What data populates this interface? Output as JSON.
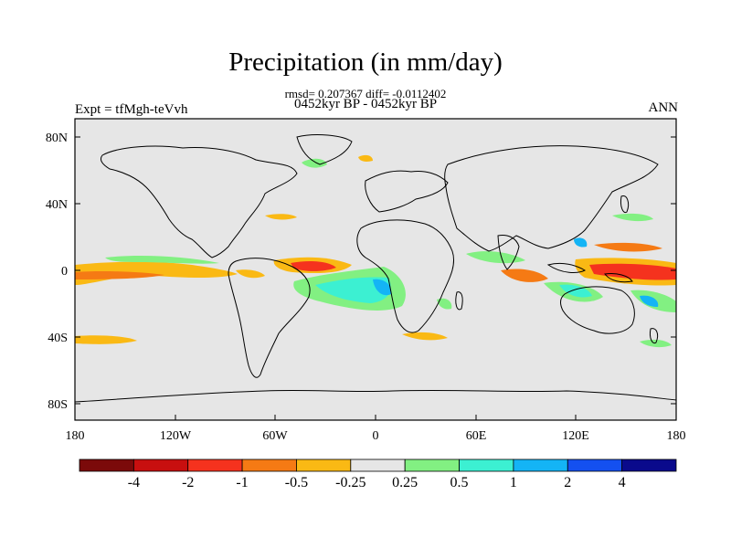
{
  "title": "Precipitation (in mm/day)",
  "stats_line": "rmsd= 0.207367 diff= -0.0112402",
  "period_line": "0452kyr BP - 0452kyr BP",
  "experiment_label": "Expt = tfMgh-teVvh",
  "season_label": "ANN",
  "map": {
    "lat_ticks": [
      "80N",
      "40N",
      "0",
      "40S",
      "80S"
    ],
    "lon_ticks": [
      "180",
      "120W",
      "60W",
      "0",
      "60E",
      "120E",
      "180"
    ],
    "background_color": "#e6e6e6"
  },
  "colorbar": {
    "colors": [
      "#7b0a0a",
      "#c80f0f",
      "#f5321e",
      "#f57a14",
      "#fab914",
      "#e6e6e6",
      "#82f082",
      "#3cf0d2",
      "#14b4f5",
      "#1450f0",
      "#0a0a8c"
    ],
    "labels": [
      "-4",
      "-2",
      "-1",
      "-0.5",
      "-0.25",
      "0.25",
      "0.5",
      "1",
      "2",
      "4"
    ]
  }
}
